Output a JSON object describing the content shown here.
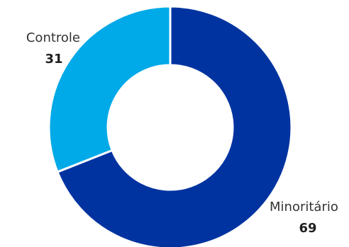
{
  "chart_data": {
    "type": "pie",
    "donut": true,
    "categories": [
      "Minoritário",
      "Controle"
    ],
    "values": [
      69,
      31
    ],
    "colors": [
      "#0033a0",
      "#00a9e8"
    ],
    "value_labels": [
      "69",
      "31"
    ],
    "title": "",
    "legend": "none"
  }
}
